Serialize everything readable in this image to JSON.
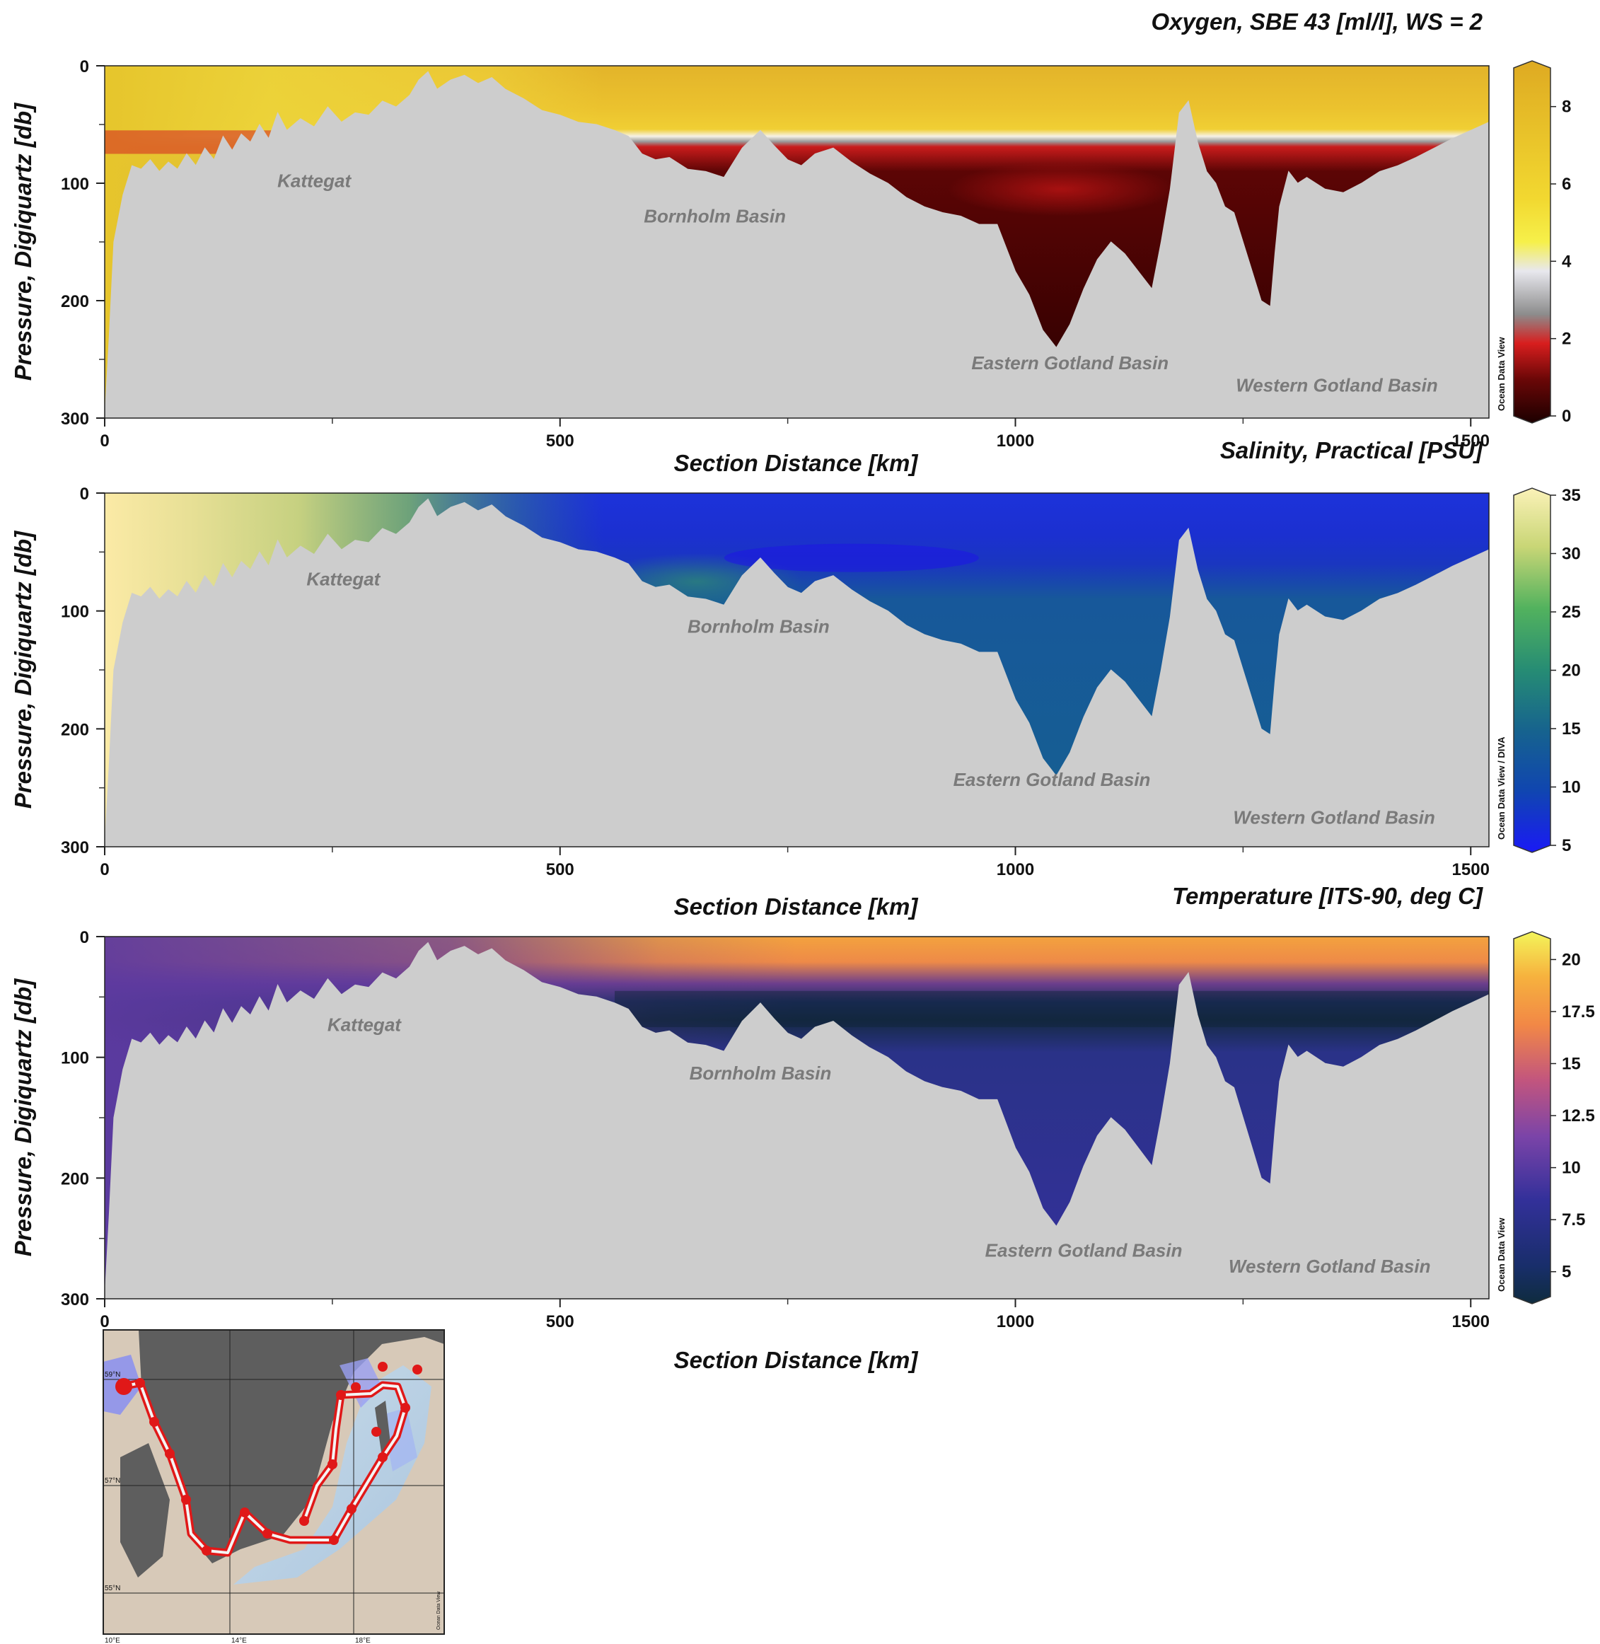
{
  "figure": {
    "xlabel": "Section Distance [km]",
    "ylabel": "Pressure, Digiquartz [db]",
    "xlim": [
      0,
      1520
    ],
    "ylim": [
      0,
      300
    ]
  },
  "chart_data": [
    {
      "type": "heatmap",
      "title": "Oxygen, SBE 43 [ml/l], WS = 2",
      "xlabel": "Section Distance [km]",
      "ylabel": "Pressure, Digiquartz [db]",
      "x_ticks": [
        "0",
        "500",
        "1000",
        "1500"
      ],
      "y_ticks": [
        "0",
        "100",
        "200",
        "300"
      ],
      "colorbar": {
        "ticks": [
          "0",
          "2",
          "4",
          "6",
          "8"
        ],
        "range": [
          0,
          9
        ]
      },
      "credit": "Ocean Data View",
      "annotations": [
        {
          "text": "Kattegat",
          "x": 230,
          "y": 98
        },
        {
          "text": "Bornholm Basin",
          "x": 670,
          "y": 128
        },
        {
          "text": "Eastern Gotland Basin",
          "x": 1060,
          "y": 253
        },
        {
          "text": "Western Gotland Basin",
          "x": 1353,
          "y": 272
        }
      ]
    },
    {
      "type": "heatmap",
      "title": "Salinity, Practical [PSU]",
      "xlabel": "Section Distance [km]",
      "ylabel": "Pressure, Digiquartz [db]",
      "x_ticks": [
        "0",
        "500",
        "1000",
        "1500"
      ],
      "y_ticks": [
        "0",
        "100",
        "200",
        "300"
      ],
      "colorbar": {
        "ticks": [
          "5",
          "10",
          "15",
          "20",
          "25",
          "30",
          "35"
        ],
        "range": [
          5,
          35
        ]
      },
      "credit": "Ocean Data View / DIVA",
      "annotations": [
        {
          "text": "Kattegat",
          "x": 262,
          "y": 73
        },
        {
          "text": "Bornholm Basin",
          "x": 718,
          "y": 113
        },
        {
          "text": "Eastern Gotland Basin",
          "x": 1040,
          "y": 243
        },
        {
          "text": "Western Gotland Basin",
          "x": 1350,
          "y": 275
        }
      ]
    },
    {
      "type": "heatmap",
      "title": "Temperature [ITS-90, deg C]",
      "xlabel": "Section Distance [km]",
      "ylabel": "Pressure, Digiquartz [db]",
      "x_ticks": [
        "0",
        "500",
        "1000",
        "1500"
      ],
      "y_ticks": [
        "0",
        "100",
        "200",
        "300"
      ],
      "colorbar": {
        "ticks": [
          "5",
          "7.5",
          "10",
          "12.5",
          "15",
          "17.5",
          "20"
        ],
        "range": [
          3.8,
          21
        ]
      },
      "credit": "Ocean Data View",
      "annotations": [
        {
          "text": "Kattegat",
          "x": 285,
          "y": 73
        },
        {
          "text": "Bornholm Basin",
          "x": 720,
          "y": 113
        },
        {
          "text": "Eastern Gotland Basin",
          "x": 1075,
          "y": 260
        },
        {
          "text": "Western Gotland Basin",
          "x": 1345,
          "y": 273
        }
      ]
    }
  ],
  "bathymetry": {
    "x": [
      0,
      5,
      10,
      20,
      30,
      40,
      50,
      60,
      70,
      80,
      90,
      100,
      110,
      120,
      130,
      140,
      150,
      160,
      170,
      180,
      190,
      200,
      215,
      230,
      245,
      260,
      275,
      290,
      305,
      320,
      335,
      345,
      355,
      365,
      380,
      395,
      410,
      425,
      440,
      460,
      480,
      500,
      520,
      540,
      560,
      575,
      590,
      605,
      620,
      640,
      660,
      680,
      700,
      720,
      735,
      750,
      765,
      780,
      800,
      820,
      840,
      860,
      880,
      900,
      920,
      940,
      960,
      980,
      1000,
      1015,
      1030,
      1045,
      1060,
      1075,
      1090,
      1105,
      1120,
      1135,
      1150,
      1160,
      1170,
      1180,
      1190,
      1200,
      1210,
      1220,
      1230,
      1240,
      1250,
      1260,
      1270,
      1280,
      1285,
      1290,
      1300,
      1310,
      1320,
      1340,
      1360,
      1380,
      1400,
      1420,
      1440,
      1460,
      1480,
      1500,
      1520
    ],
    "depth": [
      300,
      230,
      150,
      110,
      85,
      88,
      80,
      90,
      82,
      88,
      75,
      85,
      70,
      80,
      60,
      72,
      58,
      65,
      50,
      62,
      40,
      55,
      45,
      52,
      35,
      48,
      40,
      42,
      30,
      35,
      25,
      12,
      5,
      20,
      12,
      8,
      15,
      10,
      20,
      28,
      38,
      42,
      48,
      50,
      55,
      60,
      75,
      80,
      78,
      88,
      90,
      95,
      70,
      55,
      68,
      80,
      85,
      75,
      70,
      82,
      92,
      100,
      112,
      120,
      125,
      128,
      135,
      135,
      175,
      195,
      225,
      240,
      220,
      190,
      165,
      150,
      160,
      175,
      190,
      150,
      105,
      40,
      30,
      65,
      90,
      100,
      120,
      125,
      150,
      175,
      200,
      205,
      160,
      120,
      90,
      100,
      95,
      105,
      108,
      100,
      90,
      85,
      78,
      70,
      62,
      55,
      48
    ]
  },
  "map": {
    "lat_labels": [
      "59°N",
      "57°N",
      "55°N"
    ],
    "lon_labels": [
      "10°E",
      "14°E",
      "18°E"
    ],
    "credit": "Ocean Data View"
  }
}
